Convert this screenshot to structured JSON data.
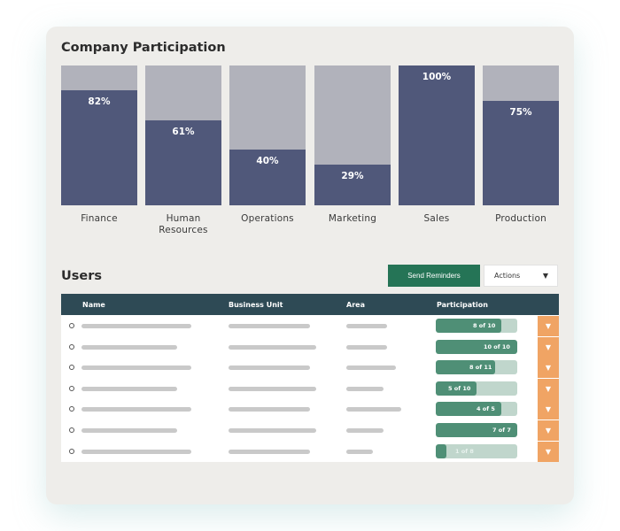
{
  "participation": {
    "title": "Company Participation",
    "bars": [
      {
        "category": "Finance",
        "percent": 82,
        "label": "82%"
      },
      {
        "category": "Human\nResources",
        "percent": 61,
        "label": "61%"
      },
      {
        "category": "Operations",
        "percent": 40,
        "label": "40%"
      },
      {
        "category": "Marketing",
        "percent": 29,
        "label": "29%"
      },
      {
        "category": "Sales",
        "percent": 100,
        "label": "100%"
      },
      {
        "category": "Production",
        "percent": 75,
        "label": "75%"
      }
    ]
  },
  "chart_data": {
    "type": "bar",
    "title": "Company Participation",
    "categories": [
      "Finance",
      "Human Resources",
      "Operations",
      "Marketing",
      "Sales",
      "Production"
    ],
    "values": [
      82,
      61,
      40,
      29,
      100,
      75
    ],
    "ylim": [
      0,
      100
    ]
  },
  "users": {
    "title": "Users",
    "send_reminders_label": "Send Reminders",
    "actions_label": "Actions",
    "actions_caret": "▼",
    "columns": [
      "Name",
      "Business Unit",
      "Area",
      "Participation"
    ],
    "rows": [
      {
        "completed": 8,
        "total": 10,
        "label": "8 of 10"
      },
      {
        "completed": 10,
        "total": 10,
        "label": "10 of 10"
      },
      {
        "completed": 8,
        "total": 11,
        "label": "8 of 11"
      },
      {
        "completed": 5,
        "total": 10,
        "label": "5 of 10"
      },
      {
        "completed": 4,
        "total": 5,
        "label": "4 of 5"
      },
      {
        "completed": 7,
        "total": 7,
        "label": "7 of 7"
      },
      {
        "completed": 1,
        "total": 8,
        "label": "1 of 8"
      }
    ],
    "row_menu_caret": "▼"
  },
  "colors": {
    "bar_fill": "#50587a",
    "bar_track": "#b1b2bb",
    "header_bg": "#2e4a55",
    "button_green": "#257456",
    "progress_fill": "#4f8f76",
    "progress_track": "#c0d6cc",
    "row_menu": "#f0a464"
  },
  "icons": {
    "row_select": "radio-circle-icon",
    "dropdown": "caret-down-icon"
  }
}
